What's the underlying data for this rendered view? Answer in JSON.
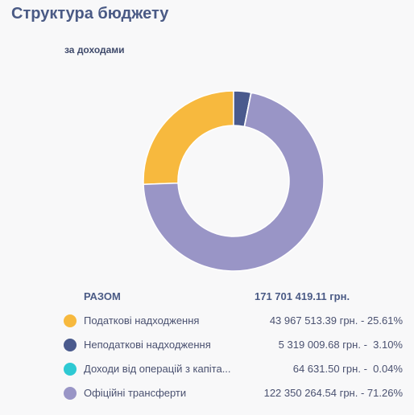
{
  "header": {
    "title": "Структура бюджету"
  },
  "chart_data": {
    "type": "pie",
    "title": "за доходами",
    "total_label": "РАЗОМ",
    "total_value": "171 701 419.11 грн.",
    "slices": [
      {
        "label": "Податкові надходження",
        "amount": "43 967 513.39 грн.",
        "percent_label": "25.61%",
        "value": 25.61,
        "color": "#f7b93e"
      },
      {
        "label": "Неподаткові надходження",
        "amount": "5 319 009.68 грн.",
        "percent_label": "3.10%",
        "value": 3.1,
        "color": "#4a5a8d"
      },
      {
        "label": "Доходи від операцій з капіта...",
        "amount": "64 631.50 грн.",
        "percent_label": "0.04%",
        "value": 0.04,
        "color": "#2ec9d3"
      },
      {
        "label": "Офіційні трансферти",
        "amount": "122 350 264.54 грн.",
        "percent_label": "71.26%",
        "value": 71.26,
        "color": "#9995c6"
      }
    ]
  }
}
